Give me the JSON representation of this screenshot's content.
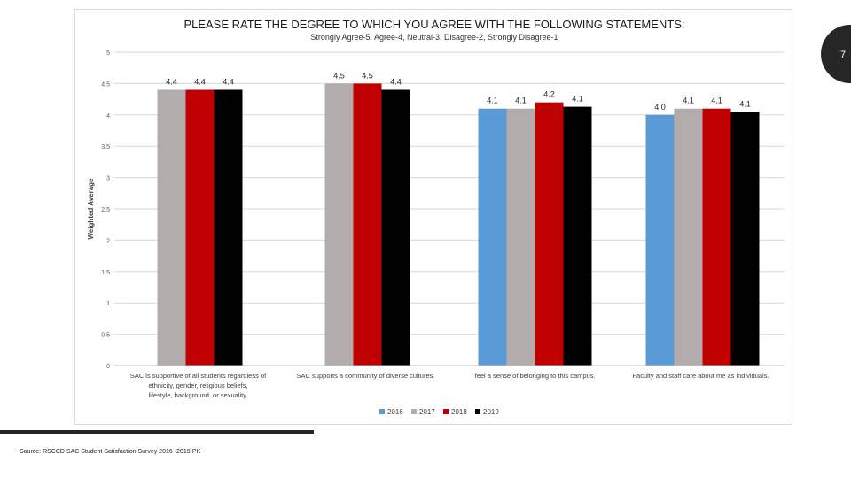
{
  "page_number": "7",
  "source": "Source: RSCCD SAC Student Satisfaction Survey 2016 -2019-PK",
  "chart_data": {
    "type": "bar",
    "title": "PLEASE RATE THE DEGREE TO WHICH YOU AGREE WITH THE FOLLOWING STATEMENTS:",
    "subtitle": "Strongly Agree-5, Agree-4, Neutral-3, Disagree-2, Strongly Disagree-1",
    "xlabel": "",
    "ylabel": "Weighted Average",
    "ylim": [
      0,
      5
    ],
    "yticks": [
      "0",
      "0.5",
      "1",
      "1.5",
      "2",
      "2.5",
      "3",
      "3.5",
      "4",
      "4.5",
      "5"
    ],
    "grid": true,
    "legend_position": "bottom",
    "categories": [
      "SAC is supportive of all students regardless of ethnicity, gender, religious beliefs, lifestyle, background, or sexuality.",
      "SAC supports a community of diverse cultures.",
      "I feel a sense of belonging to this campus.",
      "Faculty and staff care about me as individuals."
    ],
    "series": [
      {
        "name": "2016",
        "color": "#5b9bd5",
        "values": [
          null,
          null,
          4.1,
          4.0
        ],
        "labels": [
          null,
          null,
          "4.1",
          "4.0"
        ]
      },
      {
        "name": "2017",
        "color": "#b3acac",
        "values": [
          4.4,
          4.5,
          4.1,
          4.1
        ],
        "labels": [
          "4.4",
          "4.5",
          "4.1",
          "4.1"
        ]
      },
      {
        "name": "2018",
        "color": "#c00000",
        "values": [
          4.4,
          4.5,
          4.2,
          4.1
        ],
        "labels": [
          "4.4",
          "4.5",
          "4.2",
          "4.1"
        ]
      },
      {
        "name": "2019",
        "color": "#000000",
        "values": [
          4.4,
          4.4,
          4.13,
          4.05
        ],
        "labels": [
          "4.4",
          "4.4",
          "4.1",
          "4.1"
        ]
      }
    ]
  }
}
